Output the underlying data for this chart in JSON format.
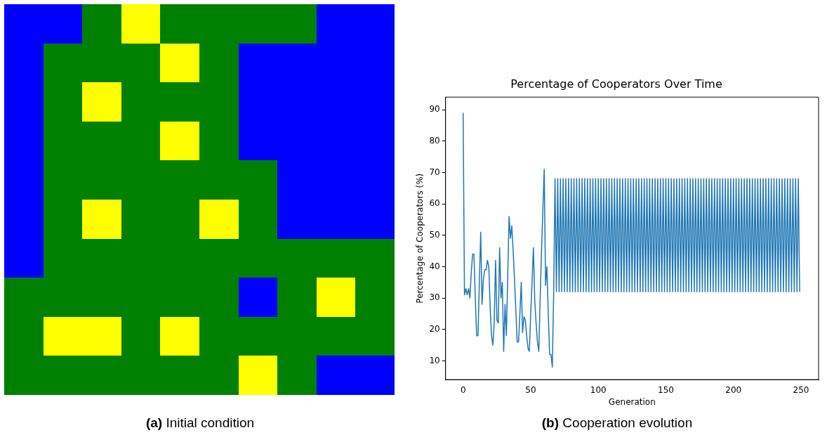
{
  "chart_data": [
    {
      "type": "other",
      "annotations": [
        "(a) Initial condition"
      ]
    },
    {
      "type": "line",
      "title": "Percentage of Cooperators Over Time",
      "xlabel": "Generation",
      "ylabel": "Percentage of Cooperators (%)",
      "x": [
        0,
        1,
        2,
        3,
        4,
        5,
        6,
        7,
        8,
        9,
        10,
        11,
        12,
        13,
        14,
        15,
        16,
        17,
        18,
        19,
        20,
        21,
        22,
        23,
        24,
        25,
        26,
        27,
        28,
        29,
        30,
        31,
        32,
        33,
        34,
        35,
        36,
        37,
        38,
        39,
        40,
        41,
        42,
        43,
        44,
        45,
        46,
        47,
        48,
        49,
        50,
        51,
        52,
        53,
        54,
        55,
        56,
        57,
        58,
        59,
        60,
        61,
        62,
        63,
        64,
        65,
        66,
        67,
        68,
        69,
        70,
        71,
        72,
        73,
        74,
        75,
        76,
        77,
        78,
        79,
        80,
        81,
        82,
        83,
        84,
        85,
        86,
        87,
        88,
        89,
        90,
        91,
        92,
        93,
        94,
        95,
        96,
        97,
        98,
        99,
        100,
        101,
        102,
        103,
        104,
        105,
        106,
        107,
        108,
        109,
        110,
        111,
        112,
        113,
        114,
        115,
        116,
        117,
        118,
        119,
        120,
        121,
        122,
        123,
        124,
        125,
        126,
        127,
        128,
        129,
        130,
        131,
        132,
        133,
        134,
        135,
        136,
        137,
        138,
        139,
        140,
        141,
        142,
        143,
        144,
        145,
        146,
        147,
        148,
        149,
        150,
        151,
        152,
        153,
        154,
        155,
        156,
        157,
        158,
        159,
        160,
        161,
        162,
        163,
        164,
        165,
        166,
        167,
        168,
        169,
        170,
        171,
        172,
        173,
        174,
        175,
        176,
        177,
        178,
        179,
        180,
        181,
        182,
        183,
        184,
        185,
        186,
        187,
        188,
        189,
        190,
        191,
        192,
        193,
        194,
        195,
        196,
        197,
        198,
        199,
        200,
        201,
        202,
        203,
        204,
        205,
        206,
        207,
        208,
        209,
        210,
        211,
        212,
        213,
        214,
        215,
        216,
        217,
        218,
        219,
        220,
        221,
        222,
        223,
        224,
        225,
        226,
        227,
        228,
        229,
        230,
        231,
        232,
        233,
        234,
        235,
        236,
        237,
        238,
        239,
        240,
        241,
        242,
        243,
        244,
        245,
        246,
        247,
        248,
        249
      ],
      "series": [
        {
          "color": "#1f77b4",
          "values": [
            89,
            31,
            33,
            31,
            33,
            30,
            38,
            44,
            44,
            30,
            18,
            18,
            35,
            51,
            28,
            36,
            39,
            39,
            42,
            40,
            27,
            18,
            15,
            22,
            42,
            23,
            22,
            46,
            30,
            35,
            13,
            28,
            18,
            37,
            56,
            49,
            53,
            45,
            36,
            26,
            16,
            16,
            25,
            35,
            19,
            24,
            23,
            18,
            14,
            13,
            25,
            35,
            46,
            29,
            22,
            16,
            13,
            30,
            45,
            58,
            71,
            34,
            40,
            25,
            12,
            12,
            8,
            32,
            68,
            32,
            68,
            32,
            68,
            32,
            68,
            32,
            68,
            32,
            68,
            32,
            68,
            32,
            68,
            32,
            68,
            32,
            68,
            32,
            68,
            32,
            68,
            32,
            68,
            32,
            68,
            32,
            68,
            32,
            68,
            32,
            68,
            32,
            68,
            32,
            68,
            32,
            68,
            32,
            68,
            32,
            68,
            32,
            68,
            32,
            68,
            32,
            68,
            32,
            68,
            32,
            68,
            32,
            68,
            32,
            68,
            32,
            68,
            32,
            68,
            32,
            68,
            32,
            68,
            32,
            68,
            32,
            68,
            32,
            68,
            32,
            68,
            32,
            68,
            32,
            68,
            32,
            68,
            32,
            68,
            32,
            68,
            32,
            68,
            32,
            68,
            32,
            68,
            32,
            68,
            32,
            68,
            32,
            68,
            32,
            68,
            32,
            68,
            32,
            68,
            32,
            68,
            32,
            68,
            32,
            68,
            32,
            68,
            32,
            68,
            32,
            68,
            32,
            68,
            32,
            68,
            32,
            68,
            32,
            68,
            32,
            68,
            32,
            68,
            32,
            68,
            32,
            68,
            32,
            68,
            32,
            68,
            32,
            68,
            32,
            68,
            32,
            68,
            32,
            68,
            32,
            68,
            32,
            68,
            32,
            68,
            32,
            68,
            32,
            68,
            32,
            68,
            32,
            68,
            32,
            68,
            32,
            68,
            32,
            68,
            32,
            68,
            32,
            68,
            32,
            68,
            32,
            68,
            32,
            68,
            32,
            68,
            32,
            68,
            32,
            68,
            32,
            68,
            32,
            68,
            32
          ]
        }
      ],
      "xlim": [
        -13,
        263
      ],
      "xticks": [
        0,
        50,
        100,
        150,
        200,
        250
      ],
      "ylim": [
        4,
        94
      ],
      "yticks": [
        10,
        20,
        30,
        40,
        50,
        60,
        70,
        80,
        90
      ],
      "grid": false,
      "legend": false,
      "marker": "none",
      "line_style": "solid",
      "annotations": [
        "(b) Cooperation evolution"
      ]
    }
  ]
}
